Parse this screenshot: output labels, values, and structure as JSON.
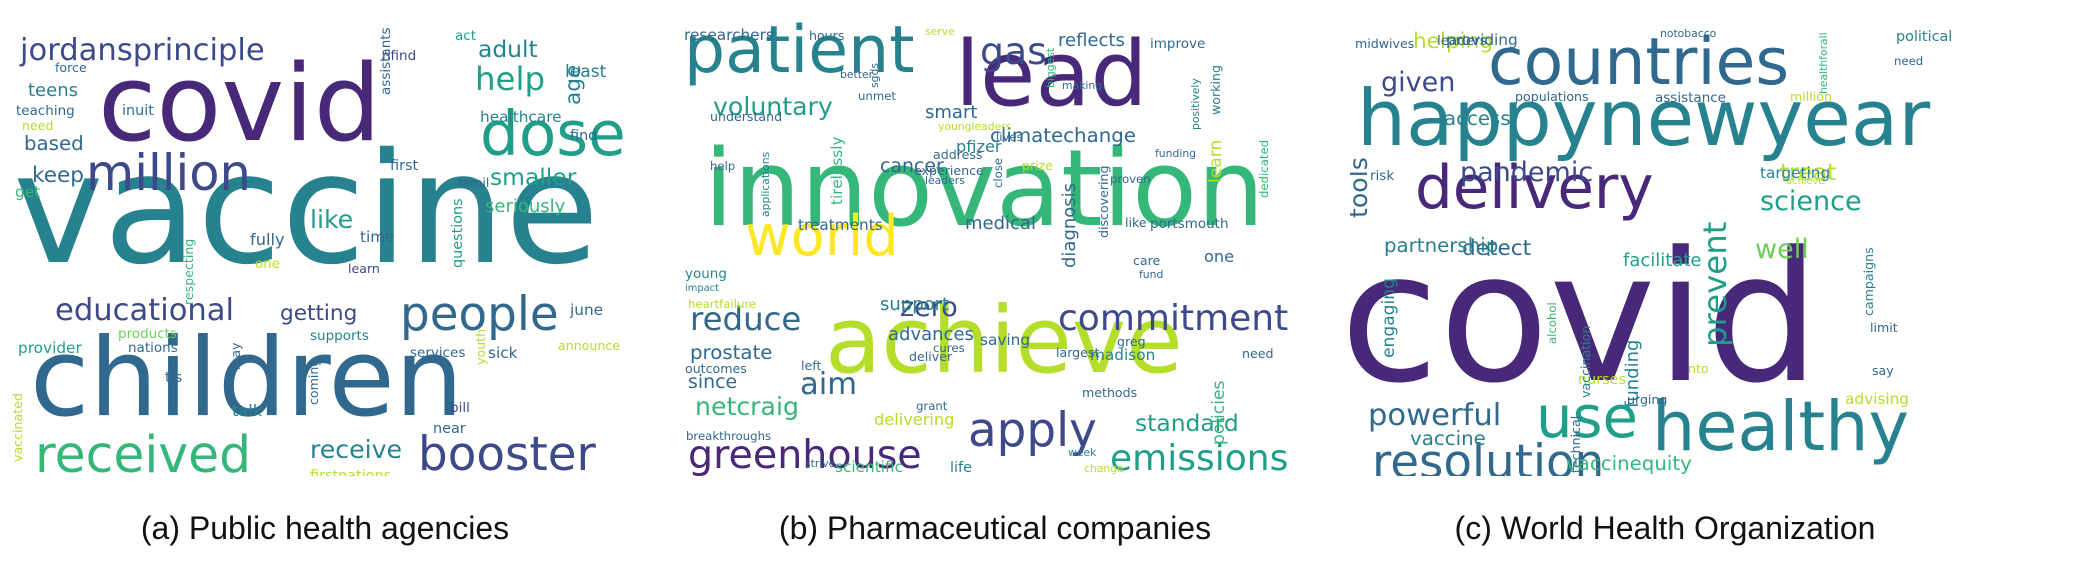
{
  "palette": [
    "#440154",
    "#482878",
    "#3e4989",
    "#31688e",
    "#26828e",
    "#1f9e89",
    "#35b779",
    "#6ece58",
    "#b5de2b",
    "#fde725"
  ],
  "panels": [
    {
      "caption": "(a) Public health agencies",
      "words": [
        {
          "t": "vaccine",
          "c": 4,
          "v": 0
        },
        {
          "t": "children",
          "c": 3,
          "v": 0
        },
        {
          "t": "covid",
          "c": 1,
          "v": 0
        },
        {
          "t": "million",
          "c": 2,
          "v": 0
        },
        {
          "t": "jordansprinciple",
          "c": 2,
          "v": 0
        },
        {
          "t": "dose",
          "c": 5,
          "v": 0
        },
        {
          "t": "people",
          "c": 3,
          "v": 0
        },
        {
          "t": "received",
          "c": 6,
          "v": 0
        },
        {
          "t": "booster",
          "c": 2,
          "v": 0
        },
        {
          "t": "educational",
          "c": 2,
          "v": 0
        },
        {
          "t": "help",
          "c": 5,
          "v": 0
        },
        {
          "t": "adult",
          "c": 4,
          "v": 0
        },
        {
          "t": "age",
          "c": 4,
          "v": 1
        },
        {
          "t": "like",
          "c": 5,
          "v": 0
        },
        {
          "t": "smaller",
          "c": 5,
          "v": 0
        },
        {
          "t": "getting",
          "c": 2,
          "v": 0
        },
        {
          "t": "receive",
          "c": 4,
          "v": 0
        },
        {
          "t": "keep",
          "c": 3,
          "v": 0
        },
        {
          "t": "based",
          "c": 3,
          "v": 0
        },
        {
          "t": "teens",
          "c": 4,
          "v": 0
        },
        {
          "t": "seriously",
          "c": 6,
          "v": 0
        },
        {
          "t": "healthcare",
          "c": 4,
          "v": 0
        },
        {
          "t": "least",
          "c": 4,
          "v": 0
        },
        {
          "t": "find",
          "c": 3,
          "v": 0
        },
        {
          "t": "nfind",
          "c": 2,
          "v": 0
        },
        {
          "t": "act",
          "c": 5,
          "v": 0
        },
        {
          "t": "assistants",
          "c": 3,
          "v": 1
        },
        {
          "t": "force",
          "c": 3,
          "v": 0
        },
        {
          "t": "teaching",
          "c": 3,
          "v": 0
        },
        {
          "t": "inuit",
          "c": 3,
          "v": 0
        },
        {
          "t": "need",
          "c": 8,
          "v": 0
        },
        {
          "t": "get",
          "c": 6,
          "v": 0
        },
        {
          "t": "first",
          "c": 3,
          "v": 0
        },
        {
          "t": "famil",
          "c": 3,
          "v": 0
        },
        {
          "t": "fully",
          "c": 3,
          "v": 0
        },
        {
          "t": "time",
          "c": 3,
          "v": 0
        },
        {
          "t": "one",
          "c": 8,
          "v": 0
        },
        {
          "t": "learn",
          "c": 2,
          "v": 0
        },
        {
          "t": "questions",
          "c": 5,
          "v": 1
        },
        {
          "t": "youth",
          "c": 8,
          "v": 1
        },
        {
          "t": "respecting",
          "c": 6,
          "v": 1
        },
        {
          "t": "june",
          "c": 3,
          "v": 0
        },
        {
          "t": "products",
          "c": 7,
          "v": 0
        },
        {
          "t": "supports",
          "c": 4,
          "v": 0
        },
        {
          "t": "provider",
          "c": 5,
          "v": 0
        },
        {
          "t": "nations",
          "c": 3,
          "v": 0
        },
        {
          "t": "services",
          "c": 3,
          "v": 0
        },
        {
          "t": "sick",
          "c": 3,
          "v": 0
        },
        {
          "t": "announce",
          "c": 8,
          "v": 0
        },
        {
          "t": "may",
          "c": 3,
          "v": 1
        },
        {
          "t": "tis",
          "c": 3,
          "v": 0
        },
        {
          "t": "coming",
          "c": 3,
          "v": 1
        },
        {
          "t": "bill",
          "c": 2,
          "v": 0
        },
        {
          "t": "talk",
          "c": 4,
          "v": 0
        },
        {
          "t": "near",
          "c": 3,
          "v": 0
        },
        {
          "t": "vaccinated",
          "c": 8,
          "v": 1
        },
        {
          "t": "firstnations",
          "c": 8,
          "v": 0
        }
      ]
    },
    {
      "caption": "(b) Pharmaceutical companies",
      "words": [
        {
          "t": "patient",
          "c": 4,
          "v": 0
        },
        {
          "t": "innovation",
          "c": 6,
          "v": 0
        },
        {
          "t": "achieve",
          "c": 8,
          "v": 0
        },
        {
          "t": "world",
          "c": 9,
          "v": 0
        },
        {
          "t": "lead",
          "c": 1,
          "v": 0
        },
        {
          "t": "gas",
          "c": 2,
          "v": 0
        },
        {
          "t": "reflects",
          "c": 3,
          "v": 0
        },
        {
          "t": "improve",
          "c": 3,
          "v": 0
        },
        {
          "t": "voluntary",
          "c": 5,
          "v": 0
        },
        {
          "t": "commitment",
          "c": 2,
          "v": 0
        },
        {
          "t": "apply",
          "c": 2,
          "v": 0
        },
        {
          "t": "greenhouse",
          "c": 1,
          "v": 0
        },
        {
          "t": "emissions",
          "c": 5,
          "v": 0
        },
        {
          "t": "reduce",
          "c": 3,
          "v": 0
        },
        {
          "t": "standard",
          "c": 5,
          "v": 0
        },
        {
          "t": "diagnosis",
          "c": 3,
          "v": 1
        },
        {
          "t": "aim",
          "c": 3,
          "v": 0
        },
        {
          "t": "netcraig",
          "c": 6,
          "v": 0
        },
        {
          "t": "prostate",
          "c": 3,
          "v": 0
        },
        {
          "t": "since",
          "c": 3,
          "v": 0
        },
        {
          "t": "zero",
          "c": 2,
          "v": 0
        },
        {
          "t": "support",
          "c": 4,
          "v": 0
        },
        {
          "t": "advances",
          "c": 3,
          "v": 0
        },
        {
          "t": "saving",
          "c": 3,
          "v": 0
        },
        {
          "t": "madison",
          "c": 4,
          "v": 0
        },
        {
          "t": "medical",
          "c": 3,
          "v": 0
        },
        {
          "t": "cancer",
          "c": 3,
          "v": 0
        },
        {
          "t": "smart",
          "c": 3,
          "v": 0
        },
        {
          "t": "climatechange",
          "c": 3,
          "v": 0
        },
        {
          "t": "pfizer",
          "c": 4,
          "v": 0
        },
        {
          "t": "treatments",
          "c": 3,
          "v": 0
        },
        {
          "t": "researchers",
          "c": 3,
          "v": 0
        },
        {
          "t": "hours",
          "c": 3,
          "v": 0
        },
        {
          "t": "serve",
          "c": 8,
          "v": 0
        },
        {
          "t": "delivering",
          "c": 8,
          "v": 0
        },
        {
          "t": "scientific",
          "c": 6,
          "v": 0
        },
        {
          "t": "life",
          "c": 4,
          "v": 0
        },
        {
          "t": "policies",
          "c": 6,
          "v": 1
        },
        {
          "t": "learn",
          "c": 8,
          "v": 1
        },
        {
          "t": "working",
          "c": 4,
          "v": 1
        },
        {
          "t": "positively",
          "c": 4,
          "v": 1
        },
        {
          "t": "portsmouth",
          "c": 3,
          "v": 0
        },
        {
          "t": "young",
          "c": 4,
          "v": 0
        },
        {
          "t": "heartfailure",
          "c": 8,
          "v": 0
        },
        {
          "t": "breakthroughs",
          "c": 3,
          "v": 0
        },
        {
          "t": "strive",
          "c": 3,
          "v": 0
        },
        {
          "t": "tirelessly",
          "c": 6,
          "v": 1
        },
        {
          "t": "better",
          "c": 3,
          "v": 0
        },
        {
          "t": "sgds",
          "c": 3,
          "v": 1
        },
        {
          "t": "unmet",
          "c": 3,
          "v": 0
        },
        {
          "t": "understand",
          "c": 3,
          "v": 0
        },
        {
          "t": "grant",
          "c": 3,
          "v": 0
        },
        {
          "t": "methods",
          "c": 3,
          "v": 0
        },
        {
          "t": "week",
          "c": 4,
          "v": 0
        },
        {
          "t": "change",
          "c": 8,
          "v": 0
        },
        {
          "t": "need",
          "c": 3,
          "v": 0
        },
        {
          "t": "one",
          "c": 3,
          "v": 0
        },
        {
          "t": "largest",
          "c": 3,
          "v": 0
        },
        {
          "t": "greg",
          "c": 3,
          "v": 0
        },
        {
          "t": "cures",
          "c": 3,
          "v": 0
        },
        {
          "t": "deliver",
          "c": 3,
          "v": 0
        },
        {
          "t": "outcomes",
          "c": 3,
          "v": 0
        },
        {
          "t": "left",
          "c": 3,
          "v": 0
        },
        {
          "t": "help",
          "c": 3,
          "v": 0
        },
        {
          "t": "impact",
          "c": 4,
          "v": 0
        },
        {
          "t": "applications",
          "c": 4,
          "v": 1
        },
        {
          "t": "experience",
          "c": 3,
          "v": 0
        },
        {
          "t": "leaders",
          "c": 3,
          "v": 0
        },
        {
          "t": "address",
          "c": 3,
          "v": 0
        },
        {
          "t": "prize",
          "c": 8,
          "v": 0
        },
        {
          "t": "lives",
          "c": 3,
          "v": 0
        },
        {
          "t": "close",
          "c": 3,
          "v": 1
        },
        {
          "t": "proven",
          "c": 3,
          "v": 0
        },
        {
          "t": "like",
          "c": 3,
          "v": 0
        },
        {
          "t": "care",
          "c": 3,
          "v": 0
        },
        {
          "t": "fund",
          "c": 3,
          "v": 0
        },
        {
          "t": "funding",
          "c": 3,
          "v": 0
        },
        {
          "t": "discovering",
          "c": 3,
          "v": 1
        },
        {
          "t": "dedicated",
          "c": 6,
          "v": 1
        },
        {
          "t": "biggest",
          "c": 6,
          "v": 1
        },
        {
          "t": "making",
          "c": 3,
          "v": 0
        },
        {
          "t": "youngleaders",
          "c": 8,
          "v": 0
        }
      ]
    },
    {
      "caption": "(c) World Health Organization",
      "words": [
        {
          "t": "covid",
          "c": 1,
          "v": 0
        },
        {
          "t": "happynewyear",
          "c": 4,
          "v": 0
        },
        {
          "t": "countries",
          "c": 3,
          "v": 0
        },
        {
          "t": "delivery",
          "c": 1,
          "v": 0
        },
        {
          "t": "healthy",
          "c": 4,
          "v": 0
        },
        {
          "t": "use",
          "c": 5,
          "v": 0
        },
        {
          "t": "resolution",
          "c": 3,
          "v": 0
        },
        {
          "t": "powerful",
          "c": 3,
          "v": 0
        },
        {
          "t": "given",
          "c": 2,
          "v": 0
        },
        {
          "t": "pandemic",
          "c": 2,
          "v": 0
        },
        {
          "t": "science",
          "c": 5,
          "v": 0
        },
        {
          "t": "treat",
          "c": 8,
          "v": 0
        },
        {
          "t": "well",
          "c": 7,
          "v": 0
        },
        {
          "t": "prevent",
          "c": 5,
          "v": 1
        },
        {
          "t": "tools",
          "c": 3,
          "v": 1
        },
        {
          "t": "detect",
          "c": 3,
          "v": 0
        },
        {
          "t": "partnership",
          "c": 4,
          "v": 0
        },
        {
          "t": "access",
          "c": 4,
          "v": 0
        },
        {
          "t": "helping",
          "c": 8,
          "v": 0
        },
        {
          "t": "vaccine",
          "c": 4,
          "v": 0
        },
        {
          "t": "vaccinequity",
          "c": 6,
          "v": 0
        },
        {
          "t": "facilitate",
          "c": 5,
          "v": 0
        },
        {
          "t": "funding",
          "c": 4,
          "v": 1
        },
        {
          "t": "engaging",
          "c": 4,
          "v": 1
        },
        {
          "t": "providing",
          "c": 3,
          "v": 0
        },
        {
          "t": "leaders",
          "c": 3,
          "v": 0
        },
        {
          "t": "political",
          "c": 4,
          "v": 0
        },
        {
          "t": "need",
          "c": 3,
          "v": 0
        },
        {
          "t": "midwives",
          "c": 3,
          "v": 0
        },
        {
          "t": "notobacco",
          "c": 3,
          "v": 0
        },
        {
          "t": "populations",
          "c": 3,
          "v": 0
        },
        {
          "t": "assistance",
          "c": 3,
          "v": 0
        },
        {
          "t": "million",
          "c": 8,
          "v": 0
        },
        {
          "t": "healthforall",
          "c": 6,
          "v": 1
        },
        {
          "t": "risk",
          "c": 3,
          "v": 0
        },
        {
          "t": "achieve",
          "c": 8,
          "v": 0
        },
        {
          "t": "targeting",
          "c": 4,
          "v": 0
        },
        {
          "t": "campaigns",
          "c": 4,
          "v": 1
        },
        {
          "t": "limit",
          "c": 3,
          "v": 0
        },
        {
          "t": "say",
          "c": 3,
          "v": 0
        },
        {
          "t": "advising",
          "c": 8,
          "v": 0
        },
        {
          "t": "urging",
          "c": 3,
          "v": 0
        },
        {
          "t": "nurses",
          "c": 8,
          "v": 0
        },
        {
          "t": "nto",
          "c": 8,
          "v": 0
        },
        {
          "t": "vaccination",
          "c": 4,
          "v": 1
        },
        {
          "t": "alcohol",
          "c": 6,
          "v": 1
        },
        {
          "t": "technical",
          "c": 3,
          "v": 1
        }
      ]
    }
  ]
}
